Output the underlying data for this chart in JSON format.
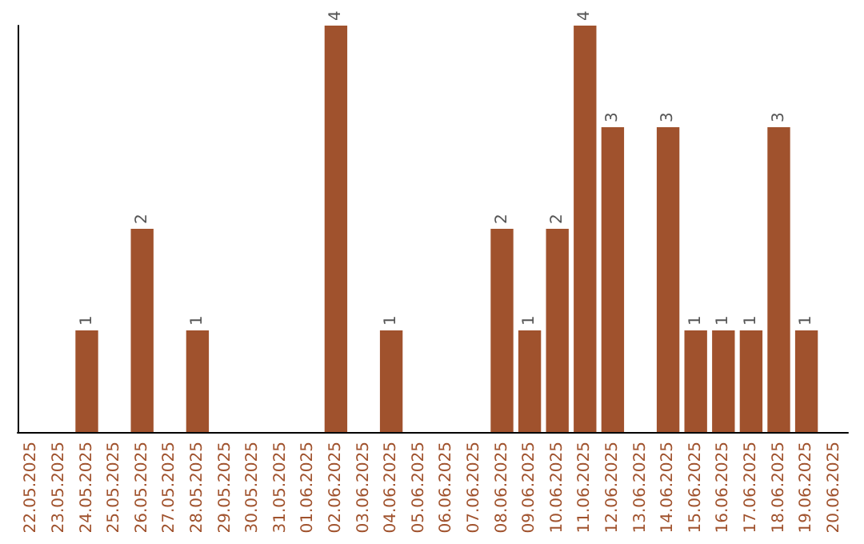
{
  "chart_data": {
    "type": "bar",
    "categories": [
      "22.05.2025",
      "23.05.2025",
      "24.05.2025",
      "25.05.2025",
      "26.05.2025",
      "27.05.2025",
      "28.05.2025",
      "29.05.2025",
      "30.05.2025",
      "31.05.2025",
      "01.06.2025",
      "02.06.2025",
      "03.06.2025",
      "04.06.2025",
      "05.06.2025",
      "06.06.2025",
      "07.06.2025",
      "08.06.2025",
      "09.06.2025",
      "10.06.2025",
      "11.06.2025",
      "12.06.2025",
      "13.06.2025",
      "14.06.2025",
      "15.06.2025",
      "16.06.2025",
      "17.06.2025",
      "18.06.2025",
      "19.06.2025",
      "20.06.2025"
    ],
    "values": [
      0,
      0,
      1,
      0,
      2,
      0,
      1,
      0,
      0,
      0,
      0,
      4,
      0,
      1,
      0,
      0,
      0,
      2,
      1,
      2,
      4,
      3,
      0,
      3,
      1,
      1,
      1,
      3,
      1,
      0
    ],
    "value_labels": [
      null,
      null,
      "1",
      null,
      "2",
      null,
      "1",
      null,
      null,
      null,
      null,
      "4",
      null,
      "1",
      null,
      null,
      null,
      "2",
      "1",
      "2",
      "4",
      "3",
      null,
      "3",
      "1",
      "1",
      "1",
      "3",
      "1",
      null
    ],
    "color": "#a0522d",
    "ylim": [
      0,
      4
    ],
    "tick_labels": "x",
    "grid": false
  }
}
